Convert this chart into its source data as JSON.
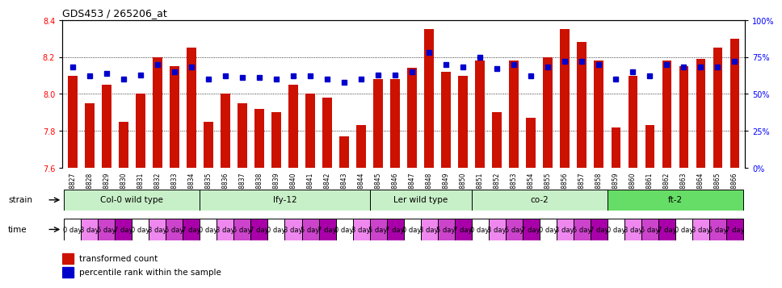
{
  "title": "GDS453 / 265206_at",
  "samples": [
    "GSM8827",
    "GSM8828",
    "GSM8829",
    "GSM8830",
    "GSM8831",
    "GSM8832",
    "GSM8833",
    "GSM8834",
    "GSM8835",
    "GSM8836",
    "GSM8837",
    "GSM8838",
    "GSM8839",
    "GSM8840",
    "GSM8841",
    "GSM8842",
    "GSM8843",
    "GSM8844",
    "GSM8845",
    "GSM8846",
    "GSM8847",
    "GSM8848",
    "GSM8849",
    "GSM8850",
    "GSM8851",
    "GSM8852",
    "GSM8853",
    "GSM8854",
    "GSM8855",
    "GSM8856",
    "GSM8857",
    "GSM8858",
    "GSM8859",
    "GSM8860",
    "GSM8861",
    "GSM8862",
    "GSM8863",
    "GSM8864",
    "GSM8865",
    "GSM8866"
  ],
  "bar_values": [
    8.1,
    7.95,
    8.05,
    7.85,
    8.0,
    8.2,
    8.15,
    8.25,
    7.85,
    8.0,
    7.95,
    7.92,
    7.9,
    8.05,
    8.0,
    7.98,
    7.77,
    7.83,
    8.08,
    8.08,
    8.14,
    8.35,
    8.12,
    8.1,
    8.18,
    7.9,
    8.18,
    7.87,
    8.2,
    8.35,
    8.28,
    8.18,
    7.82,
    8.1,
    7.83,
    8.18,
    8.15,
    8.19,
    8.25,
    8.3
  ],
  "percentile_values": [
    68,
    62,
    64,
    60,
    63,
    70,
    65,
    68,
    60,
    62,
    61,
    61,
    60,
    62,
    62,
    60,
    58,
    60,
    63,
    63,
    65,
    78,
    70,
    68,
    75,
    67,
    70,
    62,
    68,
    72,
    72,
    70,
    60,
    65,
    62,
    70,
    68,
    68,
    68,
    72
  ],
  "strains": [
    {
      "name": "Col-0 wild type",
      "start": 0,
      "end": 8
    },
    {
      "name": "lfy-12",
      "start": 8,
      "end": 18
    },
    {
      "name": "Ler wild type",
      "start": 18,
      "end": 24
    },
    {
      "name": "co-2",
      "start": 24,
      "end": 32
    },
    {
      "name": "ft-2",
      "start": 32,
      "end": 40
    }
  ],
  "strain_colors": [
    "#c8f0c8",
    "#c8f0c8",
    "#c8f0c8",
    "#c8f0c8",
    "#66dd66"
  ],
  "time_labels": [
    "0 day",
    "3 day",
    "5 day",
    "7 day"
  ],
  "time_colors": [
    "#ffffff",
    "#ee88ee",
    "#cc44cc",
    "#aa00aa"
  ],
  "ylim_left": [
    7.6,
    8.4
  ],
  "yticks_left": [
    7.6,
    7.8,
    8.0,
    8.2,
    8.4
  ],
  "ytick_labels_right": [
    "0%",
    "25%",
    "50%",
    "75%",
    "100%"
  ],
  "bar_color": "#cc1100",
  "dot_color": "#0000cc",
  "grid_lines": [
    7.8,
    8.0,
    8.2,
    8.4
  ]
}
